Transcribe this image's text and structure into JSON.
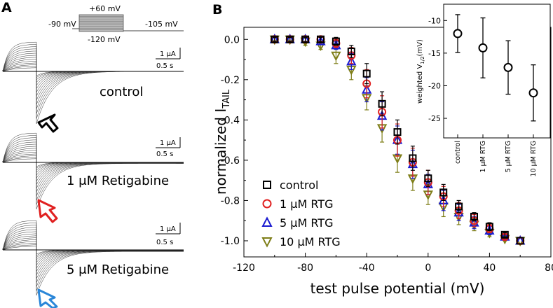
{
  "panel_a": {
    "letter": "A",
    "protocol": {
      "v_hold": "-90 mV",
      "v_top": "+60 mV",
      "v_bottom": "-120 mV",
      "v_tail": "-105 mV"
    },
    "scalebars": [
      {
        "amp": "1 μA",
        "time": "0.5 s"
      },
      {
        "amp": "1 μA",
        "time": "0.5 s"
      },
      {
        "amp": "1 μA",
        "time": "0.5 s"
      }
    ],
    "traces": [
      {
        "label": "control",
        "arrow_color": "#000000"
      },
      {
        "label": "1 μM Retigabine",
        "arrow_color": "#e02020"
      },
      {
        "label": "5 μM Retigabine",
        "arrow_color": "#2a86d8"
      }
    ]
  },
  "panel_b": {
    "letter": "B"
  },
  "chart_data": [
    {
      "type": "scatter",
      "xlabel": "test pulse potential (mV)",
      "ylabel": "normalized I",
      "ylabel_sub": "TAIL",
      "xlim": [
        -120,
        80
      ],
      "ylim": [
        -1.08,
        0.06
      ],
      "xticks": [
        -120,
        -80,
        -40,
        0,
        40,
        80
      ],
      "yticks": [
        0.0,
        -0.2,
        -0.4,
        -0.6,
        -0.8,
        -1.0
      ],
      "x": [
        -100,
        -90,
        -80,
        -70,
        -60,
        -50,
        -40,
        -30,
        -20,
        -10,
        0,
        10,
        20,
        30,
        40,
        50,
        60
      ],
      "legend_position": "bottom-left",
      "series": [
        {
          "name": "control",
          "color": "#000000",
          "marker": "square",
          "values": [
            0,
            0,
            0,
            0,
            -0.01,
            -0.06,
            -0.17,
            -0.32,
            -0.46,
            -0.59,
            -0.69,
            -0.76,
            -0.83,
            -0.88,
            -0.93,
            -0.97,
            -1.0
          ],
          "errors": [
            0.01,
            0.01,
            0.01,
            0.01,
            0.02,
            0.03,
            0.05,
            0.06,
            0.06,
            0.06,
            0.04,
            0.04,
            0.03,
            0.02,
            0.02,
            0.01,
            0.0
          ]
        },
        {
          "name": "1 μM RTG",
          "color": "#e02020",
          "marker": "circle",
          "values": [
            0,
            0,
            0,
            0,
            -0.02,
            -0.08,
            -0.22,
            -0.36,
            -0.5,
            -0.61,
            -0.71,
            -0.78,
            -0.85,
            -0.9,
            -0.94,
            -0.98,
            -1.0
          ],
          "errors": [
            0.01,
            0.01,
            0.01,
            0.01,
            0.02,
            0.04,
            0.07,
            0.08,
            0.08,
            0.07,
            0.06,
            0.05,
            0.04,
            0.03,
            0.02,
            0.01,
            0.0
          ]
        },
        {
          "name": "5 μM RTG",
          "color": "#1a1ad0",
          "marker": "triangle-up",
          "values": [
            0,
            0,
            0,
            -0.01,
            -0.03,
            -0.11,
            -0.25,
            -0.38,
            -0.5,
            -0.62,
            -0.72,
            -0.8,
            -0.86,
            -0.91,
            -0.95,
            -0.98,
            -1.0
          ],
          "errors": [
            0.01,
            0.01,
            0.01,
            0.01,
            0.02,
            0.04,
            0.06,
            0.07,
            0.07,
            0.07,
            0.05,
            0.05,
            0.04,
            0.03,
            0.02,
            0.01,
            0.0
          ]
        },
        {
          "name": "10 μM RTG",
          "color": "#7e7e18",
          "marker": "triangle-down",
          "values": [
            0,
            0,
            -0.01,
            -0.03,
            -0.08,
            -0.15,
            -0.29,
            -0.44,
            -0.59,
            -0.69,
            -0.77,
            -0.83,
            -0.88,
            -0.92,
            -0.96,
            -0.99,
            -1.0
          ],
          "errors": [
            0.01,
            0.01,
            0.02,
            0.02,
            0.04,
            0.05,
            0.06,
            0.07,
            0.07,
            0.06,
            0.05,
            0.05,
            0.04,
            0.03,
            0.02,
            0.01,
            0.0
          ]
        }
      ]
    },
    {
      "type": "scatter",
      "ylabel": "weighted V",
      "ylabel_sub": "1/2",
      "ylabel_unit": "(mV)",
      "ylim": [
        -28,
        -7.5
      ],
      "yticks": [
        -10,
        -15,
        -20,
        -25
      ],
      "categories": [
        "control",
        "1 μM RTG",
        "5 μM RTG",
        "10 μM RTG"
      ],
      "values": [
        -12.0,
        -14.2,
        -17.2,
        -21.1
      ],
      "errors": [
        2.9,
        4.6,
        4.1,
        4.3
      ],
      "color": "#000000"
    }
  ]
}
